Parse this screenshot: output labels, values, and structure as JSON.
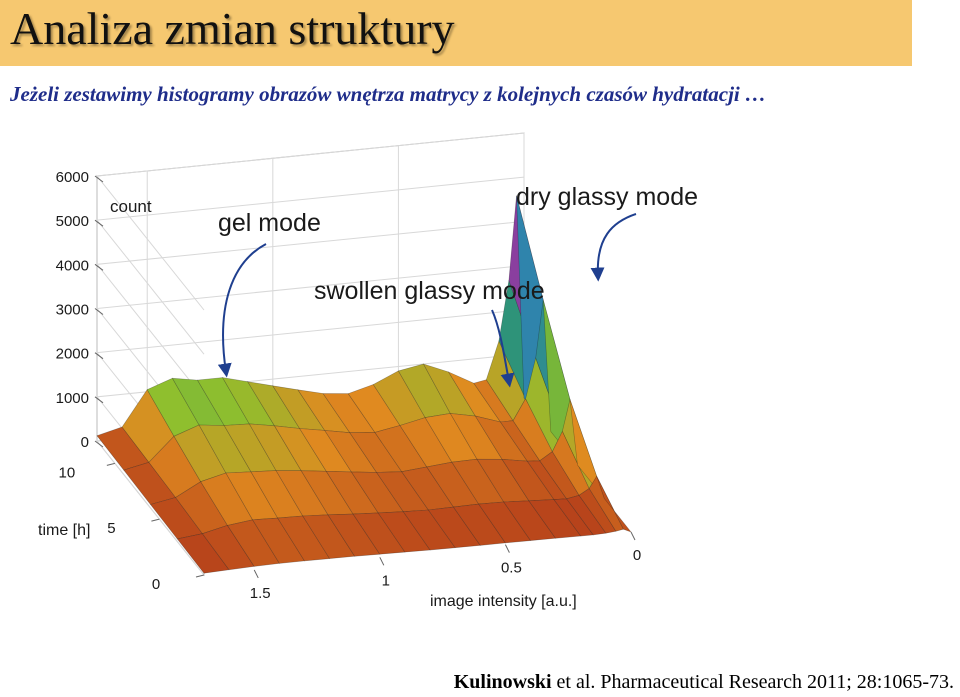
{
  "page": {
    "title": "Analiza zmian struktury",
    "subtitle": "Jeżeli zestawimy histogramy obrazów wnętrza matrycy z kolejnych czasów hydratacji …",
    "citation_author": "Kulinowski",
    "citation_rest": " et al. Pharmaceutical Research 2011; 28:1065-73."
  },
  "chart_data": {
    "type": "surface",
    "title": "",
    "xlabel": "image intensity [a.u.]",
    "ylabel": "time [h]",
    "zlabel": "count",
    "x_ticks": [
      "1.5",
      "1",
      "0.5",
      "0"
    ],
    "y_ticks": [
      "0",
      "5",
      "10"
    ],
    "z_ticks": [
      "0",
      "1000",
      "2000",
      "3000",
      "4000",
      "5000",
      "6000"
    ],
    "xlim": [
      0,
      1.7
    ],
    "ylim": [
      0,
      12
    ],
    "zlim": [
      0,
      6000
    ],
    "x": [
      1.7,
      1.6,
      1.5,
      1.4,
      1.3,
      1.2,
      1.1,
      1.0,
      0.9,
      0.8,
      0.7,
      0.6,
      0.5,
      0.4,
      0.3,
      0.2,
      0.15,
      0.1,
      0.06,
      0.03,
      0
    ],
    "series": [
      {
        "time": 12,
        "values": [
          120,
          260,
          1050,
          1250,
          1150,
          1150,
          1000,
          850,
          700,
          560,
          500,
          650,
          900,
          1000,
          760,
          450,
          500,
          1350,
          2700,
          4600,
          0
        ]
      },
      {
        "time": 9,
        "values": [
          100,
          220,
          750,
          950,
          880,
          860,
          760,
          640,
          540,
          430,
          380,
          480,
          600,
          640,
          520,
          330,
          330,
          800,
          1700,
          3000,
          0
        ]
      },
      {
        "time": 6,
        "values": [
          80,
          180,
          480,
          620,
          590,
          560,
          500,
          430,
          360,
          290,
          250,
          300,
          350,
          360,
          300,
          200,
          180,
          360,
          800,
          1500,
          0
        ]
      },
      {
        "time": 3,
        "values": [
          60,
          120,
          250,
          320,
          300,
          290,
          260,
          220,
          190,
          160,
          140,
          150,
          160,
          150,
          120,
          90,
          80,
          130,
          260,
          520,
          0
        ]
      },
      {
        "time": 0,
        "values": [
          40,
          60,
          80,
          90,
          90,
          85,
          80,
          70,
          60,
          50,
          45,
          40,
          40,
          35,
          30,
          25,
          20,
          30,
          50,
          80,
          0
        ]
      }
    ],
    "annotations": [
      "gel mode",
      "swollen glassy mode",
      "dry glassy mode"
    ],
    "grid": true,
    "colormap": [
      "#b23a1a",
      "#e08a20",
      "#8fbf2e",
      "#2e9a5e",
      "#2f7fbf",
      "#3b3fa8",
      "#8a3f9f",
      "#c0207f",
      "#303030"
    ]
  }
}
